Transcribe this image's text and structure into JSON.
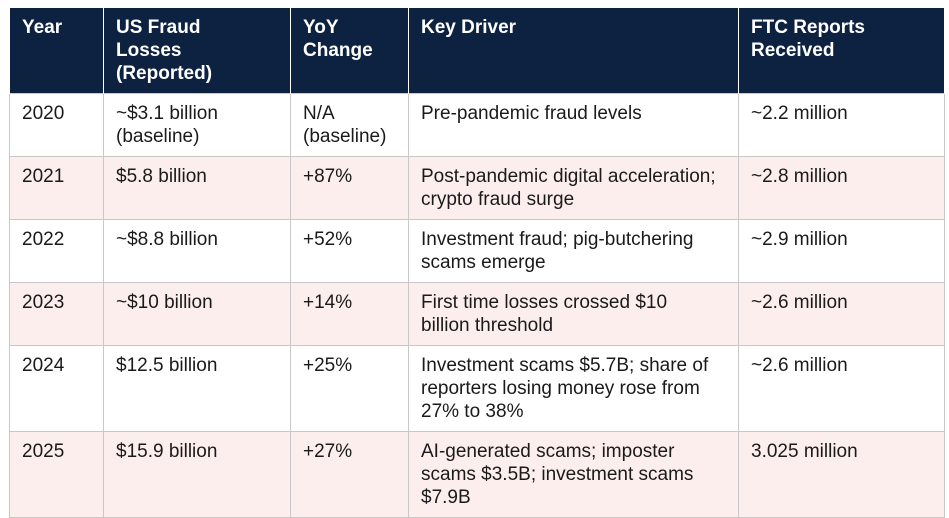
{
  "table": {
    "header": [
      "Year",
      "US Fraud Losses (Reported)",
      "YoY Change",
      "Key Driver",
      "FTC Reports Received"
    ],
    "rows": [
      [
        "2020",
        "~$3.1 billion (baseline)",
        "N/A (baseline)",
        "Pre-pandemic fraud levels",
        "~2.2 million"
      ],
      [
        "2021",
        "$5.8 billion",
        "+87%",
        "Post-pandemic digital acceleration; crypto fraud surge",
        "~2.8 million"
      ],
      [
        "2022",
        "~$8.8 billion",
        "+52%",
        "Investment fraud; pig-butchering scams emerge",
        "~2.9 million"
      ],
      [
        "2023",
        "~$10 billion",
        "+14%",
        "First time losses crossed $10 billion threshold",
        "~2.6 million"
      ],
      [
        "2024",
        "$12.5 billion",
        "+25%",
        "Investment scams $5.7B; share of reporters losing money rose from 27% to 38%",
        "~2.6 million"
      ],
      [
        "2025",
        "$15.9 billion",
        "+27%",
        "AI-generated scams; imposter scams $3.5B; investment scams $7.9B",
        "3.025 million"
      ]
    ]
  }
}
